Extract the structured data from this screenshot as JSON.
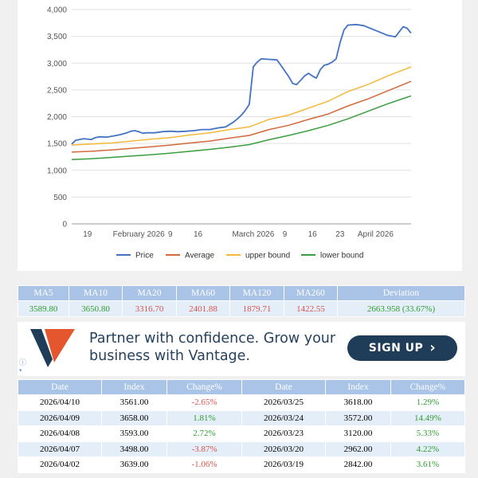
{
  "chart_data": {
    "type": "line",
    "y_ticks": [
      "4,000",
      "3,500",
      "3,000",
      "2,500",
      "2,000",
      "1,500",
      "1,000",
      "500",
      "0"
    ],
    "y_tick_values": [
      4000,
      3500,
      3000,
      2500,
      2000,
      1500,
      1000,
      500,
      0
    ],
    "ylim": [
      0,
      4000
    ],
    "x_ticks": [
      "19",
      "February 2026",
      "9",
      "16",
      "March 2026",
      "9",
      "16",
      "23",
      "April 2026"
    ],
    "x_tick_days": [
      4,
      17,
      25,
      32,
      46,
      54,
      61,
      68,
      77
    ],
    "xlim": [
      0,
      86
    ],
    "series": [
      {
        "name": "Price",
        "color": "#4472c4",
        "x": [
          0,
          1,
          3,
          5,
          6,
          7,
          9,
          12,
          14,
          15,
          16,
          17,
          18,
          19,
          21,
          23,
          25,
          27,
          29,
          31,
          33,
          35,
          37,
          39,
          41,
          42,
          43,
          44,
          45,
          46,
          47,
          48,
          50,
          52,
          53,
          55,
          56,
          57,
          58,
          59,
          60,
          61,
          62,
          63,
          64,
          65,
          66,
          67,
          68,
          69,
          70,
          72,
          74,
          76,
          78,
          80,
          82,
          84,
          85,
          86
        ],
        "values": [
          1490,
          1560,
          1590,
          1575,
          1610,
          1625,
          1620,
          1660,
          1700,
          1730,
          1740,
          1720,
          1690,
          1700,
          1700,
          1720,
          1730,
          1720,
          1730,
          1740,
          1760,
          1760,
          1790,
          1810,
          1900,
          1960,
          2030,
          2120,
          2230,
          2930,
          3020,
          3080,
          3070,
          3060,
          2960,
          2750,
          2620,
          2600,
          2680,
          2760,
          2810,
          2760,
          2720,
          2880,
          2960,
          2980,
          3020,
          3080,
          3380,
          3620,
          3710,
          3720,
          3700,
          3640,
          3580,
          3520,
          3490,
          3680,
          3650,
          3560
        ]
      },
      {
        "name": "Average",
        "color": "#d2693c",
        "x": [
          0,
          5,
          10,
          15,
          20,
          25,
          30,
          35,
          40,
          45,
          50,
          55,
          60,
          65,
          70,
          75,
          80,
          86
        ],
        "values": [
          1340,
          1355,
          1380,
          1410,
          1440,
          1470,
          1510,
          1545,
          1600,
          1650,
          1760,
          1840,
          1950,
          2050,
          2200,
          2330,
          2480,
          2660
        ]
      },
      {
        "name": "upper bound",
        "color": "#f4b93a",
        "x": [
          0,
          5,
          10,
          15,
          20,
          25,
          30,
          35,
          40,
          45,
          50,
          55,
          60,
          65,
          70,
          75,
          80,
          86
        ],
        "values": [
          1470,
          1490,
          1510,
          1545,
          1580,
          1610,
          1660,
          1700,
          1760,
          1810,
          1950,
          2030,
          2160,
          2290,
          2470,
          2600,
          2760,
          2930
        ]
      },
      {
        "name": "lower bound",
        "color": "#3a9d3f",
        "x": [
          0,
          5,
          10,
          15,
          20,
          25,
          30,
          35,
          40,
          45,
          50,
          55,
          60,
          65,
          70,
          75,
          80,
          86
        ],
        "values": [
          1200,
          1215,
          1240,
          1265,
          1290,
          1320,
          1355,
          1390,
          1430,
          1480,
          1570,
          1650,
          1740,
          1840,
          1960,
          2100,
          2240,
          2390
        ]
      }
    ]
  },
  "ma_table": {
    "headers": [
      "MA5",
      "MA10",
      "MA20",
      "MA60",
      "MA120",
      "MA260",
      "Deviation"
    ],
    "values": [
      "3589.80",
      "3650.80",
      "3316.70",
      "2401.88",
      "1879.71",
      "1422.55",
      "2663.958 (33.67%)"
    ],
    "colors": [
      "#2f9e2f",
      "#2f9e2f",
      "#d9534f",
      "#d9534f",
      "#d9534f",
      "#d9534f",
      "#2f9e2f"
    ]
  },
  "ad": {
    "text": "Partner with confidence. Grow your business with Vantage.",
    "button_label": "SIGN UP",
    "button_chevron": "›",
    "info_icon": "ⓘ",
    "chevron_icon": "▾"
  },
  "index_table": {
    "headers": [
      "Date",
      "Index",
      "Change%",
      "Date",
      "Index",
      "Change%"
    ],
    "rows": [
      {
        "d1": "2026/04/10",
        "i1": "3561.00",
        "c1": "-2.65%",
        "s1": "neg",
        "d2": "2026/03/25",
        "i2": "3618.00",
        "c2": "1.29%",
        "s2": "pos"
      },
      {
        "d1": "2026/04/09",
        "i1": "3658.00",
        "c1": "1.81%",
        "s1": "pos",
        "d2": "2026/03/24",
        "i2": "3572.00",
        "c2": "14.49%",
        "s2": "pos"
      },
      {
        "d1": "2026/04/08",
        "i1": "3593.00",
        "c1": "2.72%",
        "s1": "pos",
        "d2": "2026/03/23",
        "i2": "3120.00",
        "c2": "5.33%",
        "s2": "pos"
      },
      {
        "d1": "2026/04/07",
        "i1": "3498.00",
        "c1": "-3.87%",
        "s1": "neg",
        "d2": "2026/03/20",
        "i2": "2962.00",
        "c2": "4.22%",
        "s2": "pos"
      },
      {
        "d1": "2026/04/02",
        "i1": "3639.00",
        "c1": "-1.06%",
        "s1": "neg",
        "d2": "2026/03/19",
        "i2": "2842.00",
        "c2": "3.61%",
        "s2": "pos"
      }
    ]
  }
}
